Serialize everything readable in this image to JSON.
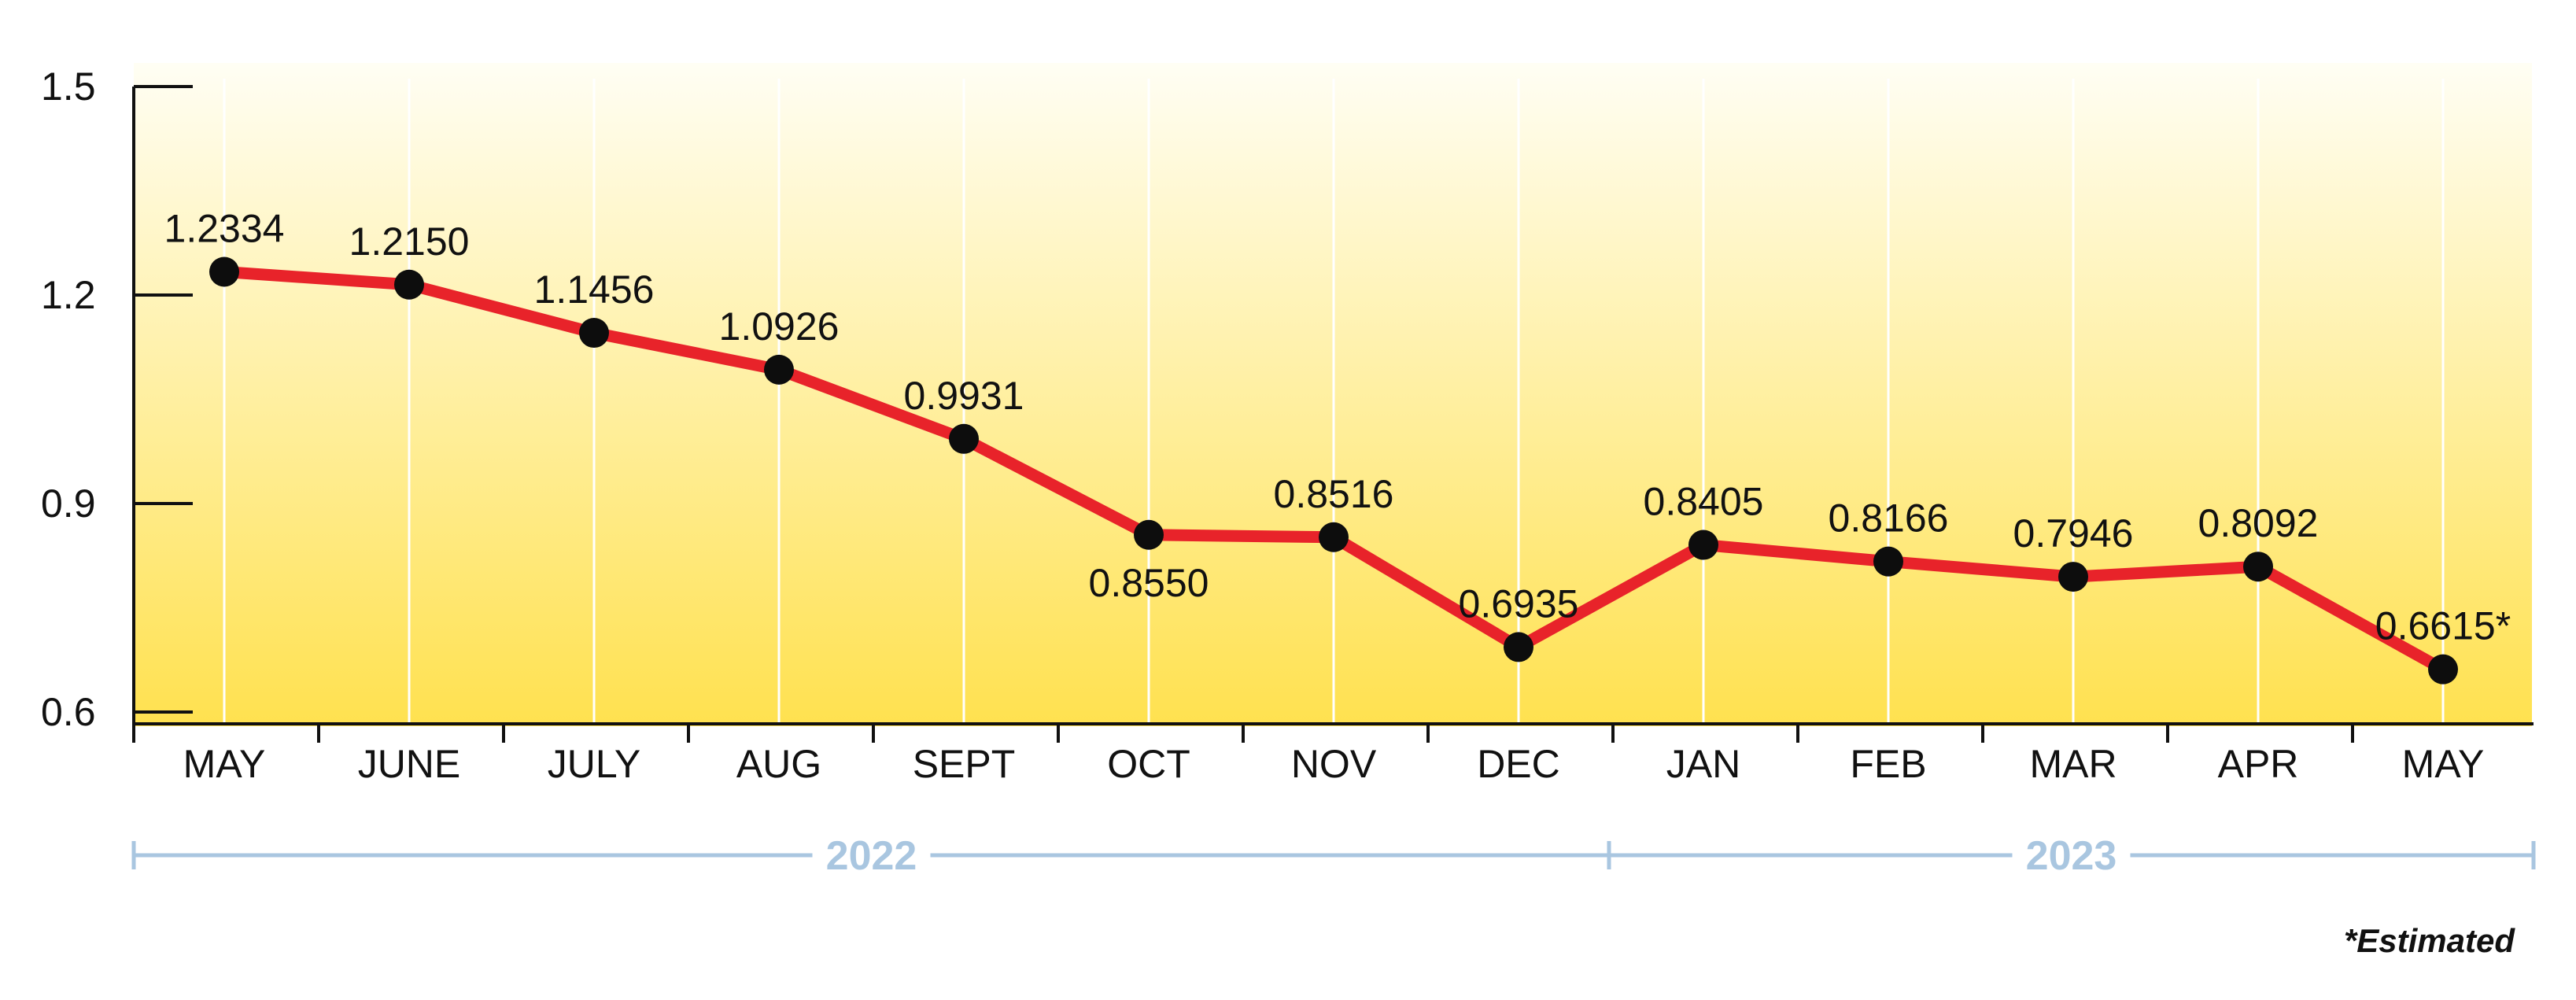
{
  "chart_data": {
    "type": "line",
    "categories": [
      "MAY",
      "JUNE",
      "JULY",
      "AUG",
      "SEPT",
      "OCT",
      "NOV",
      "DEC",
      "JAN",
      "FEB",
      "MAR",
      "APR",
      "MAY"
    ],
    "values": [
      1.2334,
      1.215,
      1.1456,
      1.0926,
      0.9931,
      0.855,
      0.8516,
      0.6935,
      0.8405,
      0.8166,
      0.7946,
      0.8092,
      0.6615
    ],
    "data_labels": [
      "1.2334",
      "1.2150",
      "1.1456",
      "1.0926",
      "0.9931",
      "0.8550",
      "0.8516",
      "0.6935",
      "0.8405",
      "0.8166",
      "0.7946",
      "0.8092",
      "0.6615*"
    ],
    "yticks": [
      "0.6",
      "0.9",
      "1.2",
      "1.5"
    ],
    "ylim": [
      0.6,
      1.5
    ],
    "year_groups": [
      {
        "label": "2022",
        "from": 0,
        "to": 8
      },
      {
        "label": "2023",
        "from": 8,
        "to": 12
      }
    ],
    "note": "*Estimated",
    "grid": "vertical",
    "colors": {
      "line": "#e8232a",
      "marker": "#0d0d0d",
      "gradient_top": "#fffef4",
      "gradient_bottom": "#ffe14f",
      "year_bracket": "#a9c6e0"
    }
  }
}
